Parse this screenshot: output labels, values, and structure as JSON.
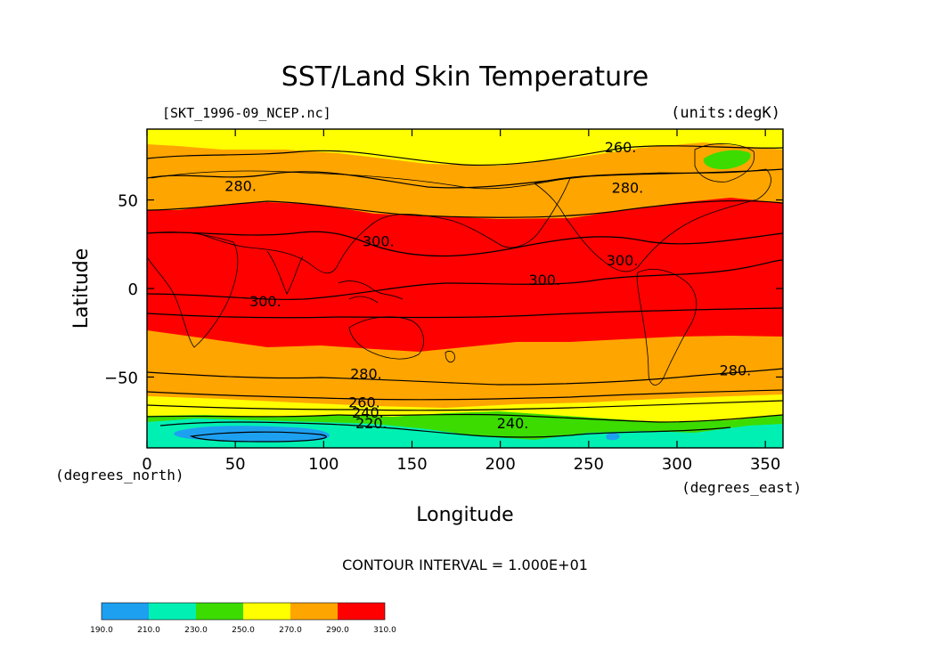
{
  "chart_data": {
    "type": "contour",
    "title": "SST/Land Skin Temperature",
    "source_label": "[SKT_1996-09_NCEP.nc]",
    "units_label": "(units:degK)",
    "xlabel": "Longitude",
    "ylabel": "Latitude",
    "x_unit_label": "(degrees_east)",
    "y_unit_label": "(degrees_north)",
    "xlim": [
      0,
      360
    ],
    "ylim": [
      -90,
      90
    ],
    "x_ticks": [
      0,
      50,
      100,
      150,
      200,
      250,
      300,
      350
    ],
    "y_ticks": [
      50,
      0,
      -50
    ],
    "y_tick_labels": [
      "50",
      "0",
      "−50"
    ],
    "contour_interval_text": "CONTOUR INTERVAL = 1.000E+01",
    "contour_labels": [
      {
        "text": "260.",
        "lon": 268,
        "lat": 80
      },
      {
        "text": "280.",
        "lon": 53,
        "lat": 58
      },
      {
        "text": "280.",
        "lon": 272,
        "lat": 57
      },
      {
        "text": "300.",
        "lon": 131,
        "lat": 27
      },
      {
        "text": "300.",
        "lon": 269,
        "lat": 16
      },
      {
        "text": "300.",
        "lon": 225,
        "lat": 5
      },
      {
        "text": "300.",
        "lon": 67,
        "lat": -7
      },
      {
        "text": "280.",
        "lon": 124,
        "lat": -48
      },
      {
        "text": "280.",
        "lon": 333,
        "lat": -46
      },
      {
        "text": "260.",
        "lon": 123,
        "lat": -64
      },
      {
        "text": "240.",
        "lon": 125,
        "lat": -70
      },
      {
        "text": "220.",
        "lon": 127,
        "lat": -76
      },
      {
        "text": "240.",
        "lon": 207,
        "lat": -76
      }
    ],
    "colorbar": {
      "levels": [
        "190.0",
        "210.0",
        "230.0",
        "250.0",
        "270.0",
        "290.0",
        "310.0"
      ],
      "colors": [
        "#1ea0f0",
        "#00f0b4",
        "#3cdc00",
        "#ffff00",
        "#ffa500",
        "#ff0000"
      ]
    }
  }
}
